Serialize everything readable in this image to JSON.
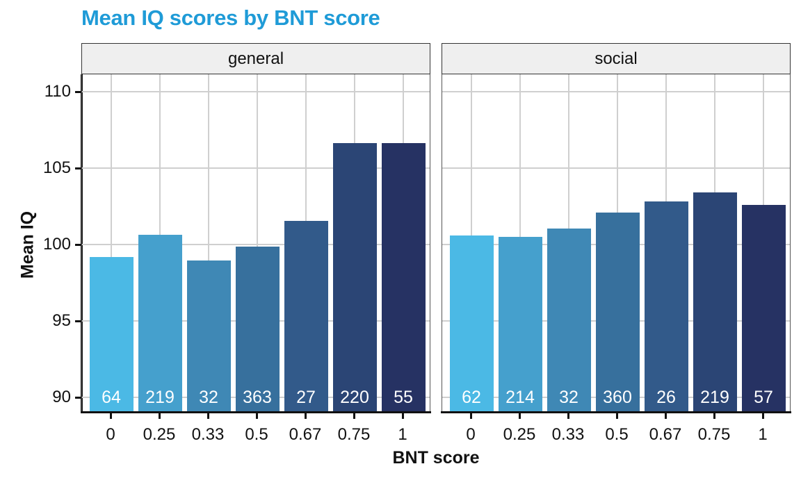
{
  "chart_data": {
    "type": "bar",
    "title": "Mean IQ scores by BNT score",
    "xlabel": "BNT score",
    "ylabel": "Mean IQ",
    "ylim": [
      89.1,
      111.2
    ],
    "yticks": [
      90,
      95,
      100,
      105,
      110
    ],
    "grid": true,
    "legend": "none",
    "categories": [
      "0",
      "0.25",
      "0.33",
      "0.5",
      "0.67",
      "0.75",
      "1"
    ],
    "colors": [
      "#4bb9e5",
      "#45a0cd",
      "#3f88b5",
      "#37709d",
      "#325a8a",
      "#2b4575",
      "#263263"
    ],
    "facets": [
      {
        "name": "general",
        "values": [
          99.2,
          100.65,
          98.95,
          99.85,
          101.55,
          106.65,
          106.65
        ],
        "counts": [
          64,
          219,
          32,
          363,
          27,
          220,
          55
        ]
      },
      {
        "name": "social",
        "values": [
          100.6,
          100.5,
          101.05,
          102.1,
          102.8,
          103.4,
          102.6
        ],
        "counts": [
          62,
          214,
          32,
          360,
          26,
          219,
          57
        ]
      }
    ]
  },
  "labels": {
    "title": "Mean IQ scores by BNT score",
    "xtitle": "BNT score",
    "ytitle": "Mean IQ",
    "yticks": [
      "110",
      "105",
      "100",
      "95",
      "90"
    ],
    "xticks": [
      "0",
      "0.25",
      "0.33",
      "0.5",
      "0.67",
      "0.75",
      "1"
    ],
    "panels": [
      "general",
      "social"
    ],
    "general_counts": [
      "64",
      "219",
      "32",
      "363",
      "27",
      "220",
      "55"
    ],
    "social_counts": [
      "62",
      "214",
      "32",
      "360",
      "26",
      "219",
      "57"
    ]
  }
}
